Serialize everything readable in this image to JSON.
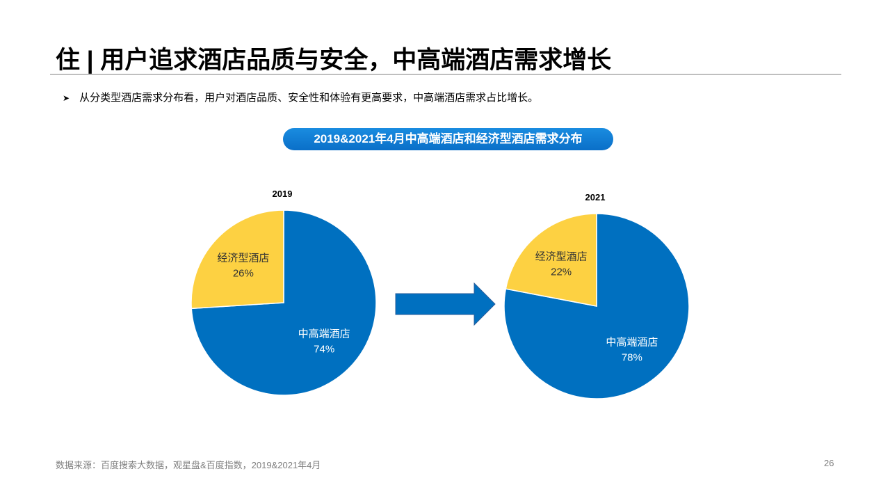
{
  "title": "住 | 用户追求酒店品质与安全，中高端酒店需求增长",
  "bullet": "从分类型酒店需求分布看，用户对酒店品质、安全性和体验有更高要求，中高端酒店需求占比增长。",
  "chart_title": "2019&2021年4月中高端酒店和经济型酒店需求分布",
  "footer": {
    "source": "数据来源：百度搜索大数据，观星盘&百度指数，2019&2021年4月",
    "page": "26"
  },
  "colors": {
    "midhigh": "#0070c0",
    "economy": "#fdd142",
    "pill": "#0a78d2"
  },
  "chart_data": [
    {
      "type": "pie",
      "title": "2019",
      "slices": [
        {
          "label": "中高端酒店",
          "value": 74,
          "text": "74%"
        },
        {
          "label": "经济型酒店",
          "value": 26,
          "text": "26%"
        }
      ]
    },
    {
      "type": "pie",
      "title": "2021",
      "slices": [
        {
          "label": "中高端酒店",
          "value": 78,
          "text": "78%"
        },
        {
          "label": "经济型酒店",
          "value": 22,
          "text": "22%"
        }
      ]
    }
  ]
}
